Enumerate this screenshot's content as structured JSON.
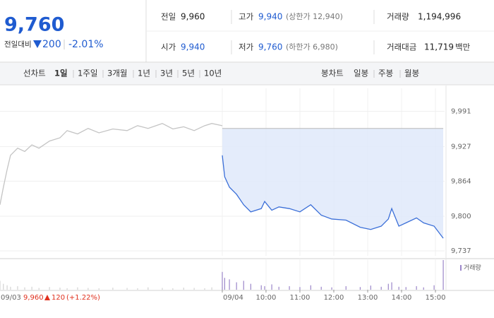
{
  "header": {
    "price": "9,760",
    "change_label": "전일대비",
    "change": "200",
    "change_pct": "-2.01%",
    "stats": [
      {
        "label": "전일",
        "value": "9,960"
      },
      {
        "label": "고가",
        "value": "9,940",
        "note": "(상한가 12,940)"
      },
      {
        "label": "거래량",
        "value": "1,194,996"
      },
      {
        "label": "시가",
        "value": "9,940"
      },
      {
        "label": "저가",
        "value": "9,760",
        "note": "(하한가 6,980)"
      },
      {
        "label": "거래대금",
        "value": "11,719",
        "unit": "백만"
      }
    ]
  },
  "tabs": {
    "line_label": "선차트",
    "line": [
      "1일",
      "1주일",
      "3개월",
      "1년",
      "3년",
      "5년",
      "10년"
    ],
    "candle_label": "봉차트",
    "candle": [
      "일봉",
      "주봉",
      "월봉"
    ]
  },
  "prev_day": {
    "date": "09/03",
    "close": "9,960",
    "change": "120",
    "change_pct": "(+1.22%)"
  },
  "chart_data": {
    "type": "line",
    "xlim": [
      2.15,
      15.27
    ],
    "ylim": [
      9728,
      10033
    ],
    "xticks": [
      {
        "value": 8.71,
        "label": "09/04"
      },
      {
        "value": 10,
        "label": "10:00"
      },
      {
        "value": 11,
        "label": "11:00"
      },
      {
        "value": 12,
        "label": "12:00"
      },
      {
        "value": 13,
        "label": "13:00"
      },
      {
        "value": 14,
        "label": "14:00"
      },
      {
        "value": 15,
        "label": "15:00"
      }
    ],
    "yticks": [
      {
        "value": 9991,
        "label": "9,991"
      },
      {
        "value": 9927,
        "label": "9,927"
      },
      {
        "value": 9864,
        "label": "9,864"
      },
      {
        "value": 9800,
        "label": "9,800"
      },
      {
        "value": 9737,
        "label": "9,737"
      }
    ],
    "baseline": 9960,
    "grid": true,
    "series": [
      {
        "color": "#c4c4c4",
        "x": [
          2.15,
          2.25,
          2.36,
          2.46,
          2.67,
          2.88,
          3.09,
          3.3,
          3.61,
          3.92,
          4.13,
          4.44,
          4.75,
          5.07,
          5.48,
          5.9,
          6.21,
          6.52,
          6.94,
          7.25,
          7.57,
          7.88,
          8.19,
          8.4,
          8.71
        ],
        "values": [
          9821,
          9853,
          9885,
          9911,
          9924,
          9918,
          9930,
          9924,
          9937,
          9943,
          9956,
          9950,
          9960,
          9952,
          9959,
          9956,
          9965,
          9960,
          9969,
          9959,
          9963,
          9956,
          9965,
          9969,
          9965
        ]
      },
      {
        "color": "#3b6fd8",
        "x": [
          8.71,
          8.78,
          8.92,
          9.13,
          9.34,
          9.55,
          9.86,
          9.96,
          10.17,
          10.38,
          10.69,
          11.0,
          11.32,
          11.63,
          11.94,
          12.36,
          12.78,
          13.09,
          13.4,
          13.61,
          13.71,
          13.92,
          14.13,
          14.44,
          14.65,
          14.96,
          15.23
        ],
        "values": [
          9911,
          9872,
          9853,
          9840,
          9821,
          9808,
          9814,
          9827,
          9811,
          9817,
          9814,
          9808,
          9821,
          9802,
          9795,
          9793,
          9780,
          9776,
          9782,
          9795,
          9814,
          9782,
          9788,
          9797,
          9788,
          9782,
          9760
        ]
      }
    ],
    "volume": {
      "name": "거래량",
      "vlim": [
        0,
        100
      ],
      "colors": [
        "#d2d2d2",
        "#9b86c9"
      ],
      "values": [
        [
          30,
          20,
          15,
          10,
          12,
          8,
          10,
          6,
          9,
          7,
          5,
          8,
          6,
          5,
          7,
          6,
          5,
          8,
          6,
          5,
          7,
          6,
          5,
          8,
          10
        ],
        [
          60,
          40,
          35,
          25,
          30,
          20,
          15,
          12,
          18,
          10,
          12,
          9,
          15,
          10,
          8,
          12,
          9,
          14,
          10,
          20,
          25,
          10,
          9,
          12,
          8,
          15,
          100
        ]
      ]
    }
  }
}
